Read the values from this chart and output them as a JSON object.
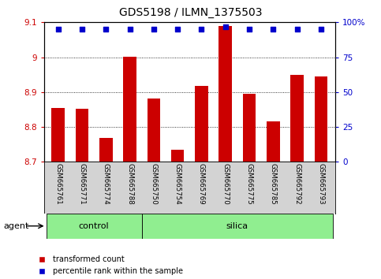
{
  "title": "GDS5198 / ILMN_1375503",
  "categories": [
    "GSM665761",
    "GSM665771",
    "GSM665774",
    "GSM665788",
    "GSM665750",
    "GSM665754",
    "GSM665769",
    "GSM665770",
    "GSM665775",
    "GSM665785",
    "GSM665792",
    "GSM665793"
  ],
  "red_values": [
    8.855,
    8.852,
    8.768,
    9.002,
    8.882,
    8.735,
    8.917,
    9.09,
    8.895,
    8.815,
    8.95,
    8.945
  ],
  "blue_values": [
    95,
    95,
    95,
    95,
    95,
    95,
    95,
    97,
    95,
    95,
    95,
    95
  ],
  "ylim_left": [
    8.7,
    9.1
  ],
  "ylim_right": [
    0,
    100
  ],
  "yticks_left": [
    8.7,
    8.8,
    8.9,
    9.0,
    9.1
  ],
  "yticks_right": [
    0,
    25,
    50,
    75,
    100
  ],
  "ytick_labels_left": [
    "8.7",
    "8.8",
    "8.9",
    "9",
    "9.1"
  ],
  "ytick_labels_right": [
    "0",
    "25",
    "50",
    "75",
    "100%"
  ],
  "bar_color": "#cc0000",
  "dot_color": "#0000cc",
  "bar_bottom": 8.7,
  "control_count": 4,
  "control_label": "control",
  "silica_label": "silica",
  "agent_label": "agent",
  "legend_red": "transformed count",
  "legend_blue": "percentile rank within the sample",
  "tick_area_bg": "#d3d3d3",
  "green_bg": "#90EE90",
  "xlabel_color": "#cc0000",
  "dot_color_hex": "#0000cc"
}
